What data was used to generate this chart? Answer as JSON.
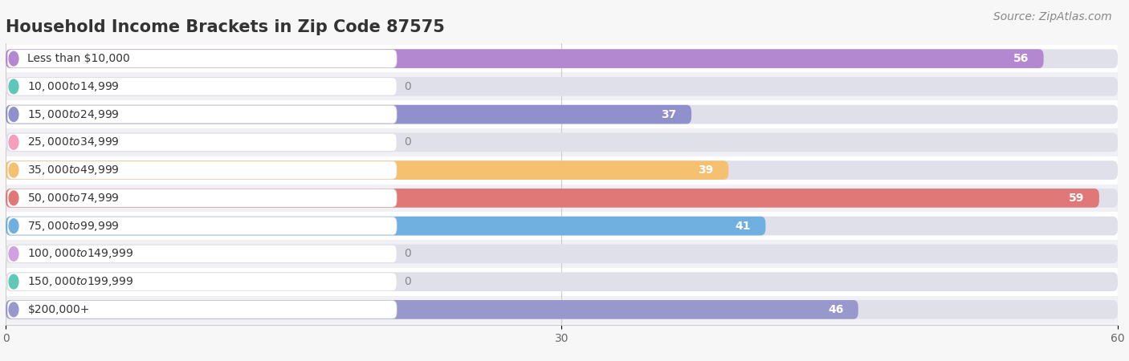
{
  "title": "Household Income Brackets in Zip Code 87575",
  "source": "Source: ZipAtlas.com",
  "categories": [
    "Less than $10,000",
    "$10,000 to $14,999",
    "$15,000 to $24,999",
    "$25,000 to $34,999",
    "$35,000 to $49,999",
    "$50,000 to $74,999",
    "$75,000 to $99,999",
    "$100,000 to $149,999",
    "$150,000 to $199,999",
    "$200,000+"
  ],
  "values": [
    56,
    0,
    37,
    0,
    39,
    59,
    41,
    0,
    0,
    46
  ],
  "bar_colors": [
    "#b388d0",
    "#5ec8b8",
    "#9090cc",
    "#f4a0bc",
    "#f5c070",
    "#e07878",
    "#70b0e0",
    "#d0a0e0",
    "#60c8b8",
    "#9898cc"
  ],
  "row_bg_colors": [
    "#ffffff",
    "#f0f0f5"
  ],
  "bar_bg_color": "#e0e0ea",
  "xlim": [
    0,
    60
  ],
  "xticks": [
    0,
    30,
    60
  ],
  "background_color": "#f7f7f7",
  "title_fontsize": 15,
  "source_fontsize": 10,
  "label_fontsize": 10,
  "value_fontsize": 10
}
